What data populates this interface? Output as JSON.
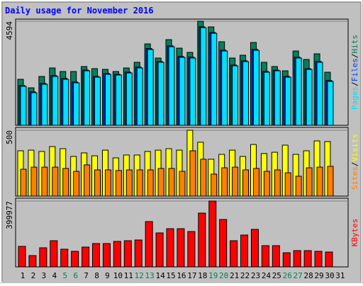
{
  "chart_data": [
    {
      "type": "bar",
      "title": "Daily usage for November 2016",
      "categories": [
        "1",
        "2",
        "3",
        "4",
        "5",
        "6",
        "7",
        "8",
        "9",
        "10",
        "11",
        "12",
        "13",
        "14",
        "15",
        "16",
        "17",
        "18",
        "19",
        "20",
        "21",
        "22",
        "23",
        "24",
        "25",
        "26",
        "27",
        "28",
        "29",
        "30",
        "31"
      ],
      "category_colors": [
        "#000000",
        "#000000",
        "#000000",
        "#000000",
        "#00805c",
        "#00805c",
        "#000000",
        "#000000",
        "#000000",
        "#000000",
        "#000000",
        "#00805c",
        "#00805c",
        "#000000",
        "#000000",
        "#000000",
        "#000000",
        "#000000",
        "#00805c",
        "#00805c",
        "#000000",
        "#000000",
        "#000000",
        "#000000",
        "#000000",
        "#00805c",
        "#00805c",
        "#000000",
        "#000000",
        "#000000",
        "#000000"
      ],
      "legend_separator": "/",
      "ylim": [
        0,
        4594
      ],
      "yticks": [
        4594
      ],
      "series": [
        {
          "name": "Hits",
          "color": "#00805c",
          "values": [
            2031,
            1656,
            2156,
            2531,
            2375,
            2375,
            2594,
            2500,
            2469,
            2375,
            2531,
            2781,
            3594,
            2969,
            3781,
            3406,
            3219,
            4594,
            4344,
            3688,
            2969,
            3094,
            3656,
            2781,
            2594,
            2406,
            3281,
            2906,
            3156,
            2344,
            null
          ]
        },
        {
          "name": "Files",
          "color": "#0040ff",
          "values": [
            1760,
            1480,
            1850,
            2200,
            2070,
            1910,
            2440,
            2160,
            2290,
            2250,
            2350,
            2570,
            3390,
            2820,
            3510,
            3040,
            3010,
            4350,
            4100,
            3320,
            2660,
            2850,
            3350,
            2380,
            2440,
            2160,
            3010,
            2500,
            2820,
            1980,
            null
          ]
        },
        {
          "name": "Pages",
          "color": "#00e0ff",
          "values": [
            1719,
            1438,
            1812,
            2156,
            2031,
            1875,
            2406,
            2125,
            2250,
            2219,
            2312,
            2531,
            3344,
            2781,
            3469,
            3000,
            2969,
            4312,
            4062,
            3281,
            2625,
            2812,
            3312,
            2344,
            2406,
            2125,
            2969,
            2469,
            2781,
            1937,
            null
          ]
        }
      ]
    },
    {
      "type": "bar",
      "legend_separator": "/",
      "ylim": [
        0,
        500
      ],
      "yticks": [
        500
      ],
      "series": [
        {
          "name": "Visits",
          "color": "#ffff00",
          "values": [
            344,
            349,
            339,
            376,
            360,
            301,
            328,
            306,
            349,
            290,
            312,
            312,
            339,
            349,
            360,
            349,
            500,
            409,
            280,
            317,
            349,
            301,
            392,
            323,
            333,
            387,
            317,
            344,
            419,
            414,
            null
          ]
        },
        {
          "name": "Sites",
          "color": "#ff8000",
          "values": [
            204,
            220,
            220,
            220,
            210,
            188,
            237,
            199,
            199,
            194,
            199,
            199,
            199,
            210,
            210,
            188,
            344,
            280,
            167,
            215,
            220,
            199,
            210,
            188,
            199,
            177,
            151,
            215,
            220,
            226,
            null
          ]
        }
      ]
    },
    {
      "type": "bar",
      "ylim": [
        0,
        399977
      ],
      "yticks": [
        399977
      ],
      "series": [
        {
          "name": "KBytes",
          "color": "#ff0000",
          "values": [
            124724,
            68813,
            116123,
            159130,
            107521,
            94618,
            120423,
            141927,
            141927,
            154829,
            159130,
            163431,
            275254,
            206440,
            232245,
            232245,
            215041,
            326863,
            399977,
            288156,
            159130,
            193537,
            227944,
            129025,
            129025,
            86016,
            98919,
            98919,
            94618,
            90317,
            null
          ]
        }
      ]
    }
  ]
}
